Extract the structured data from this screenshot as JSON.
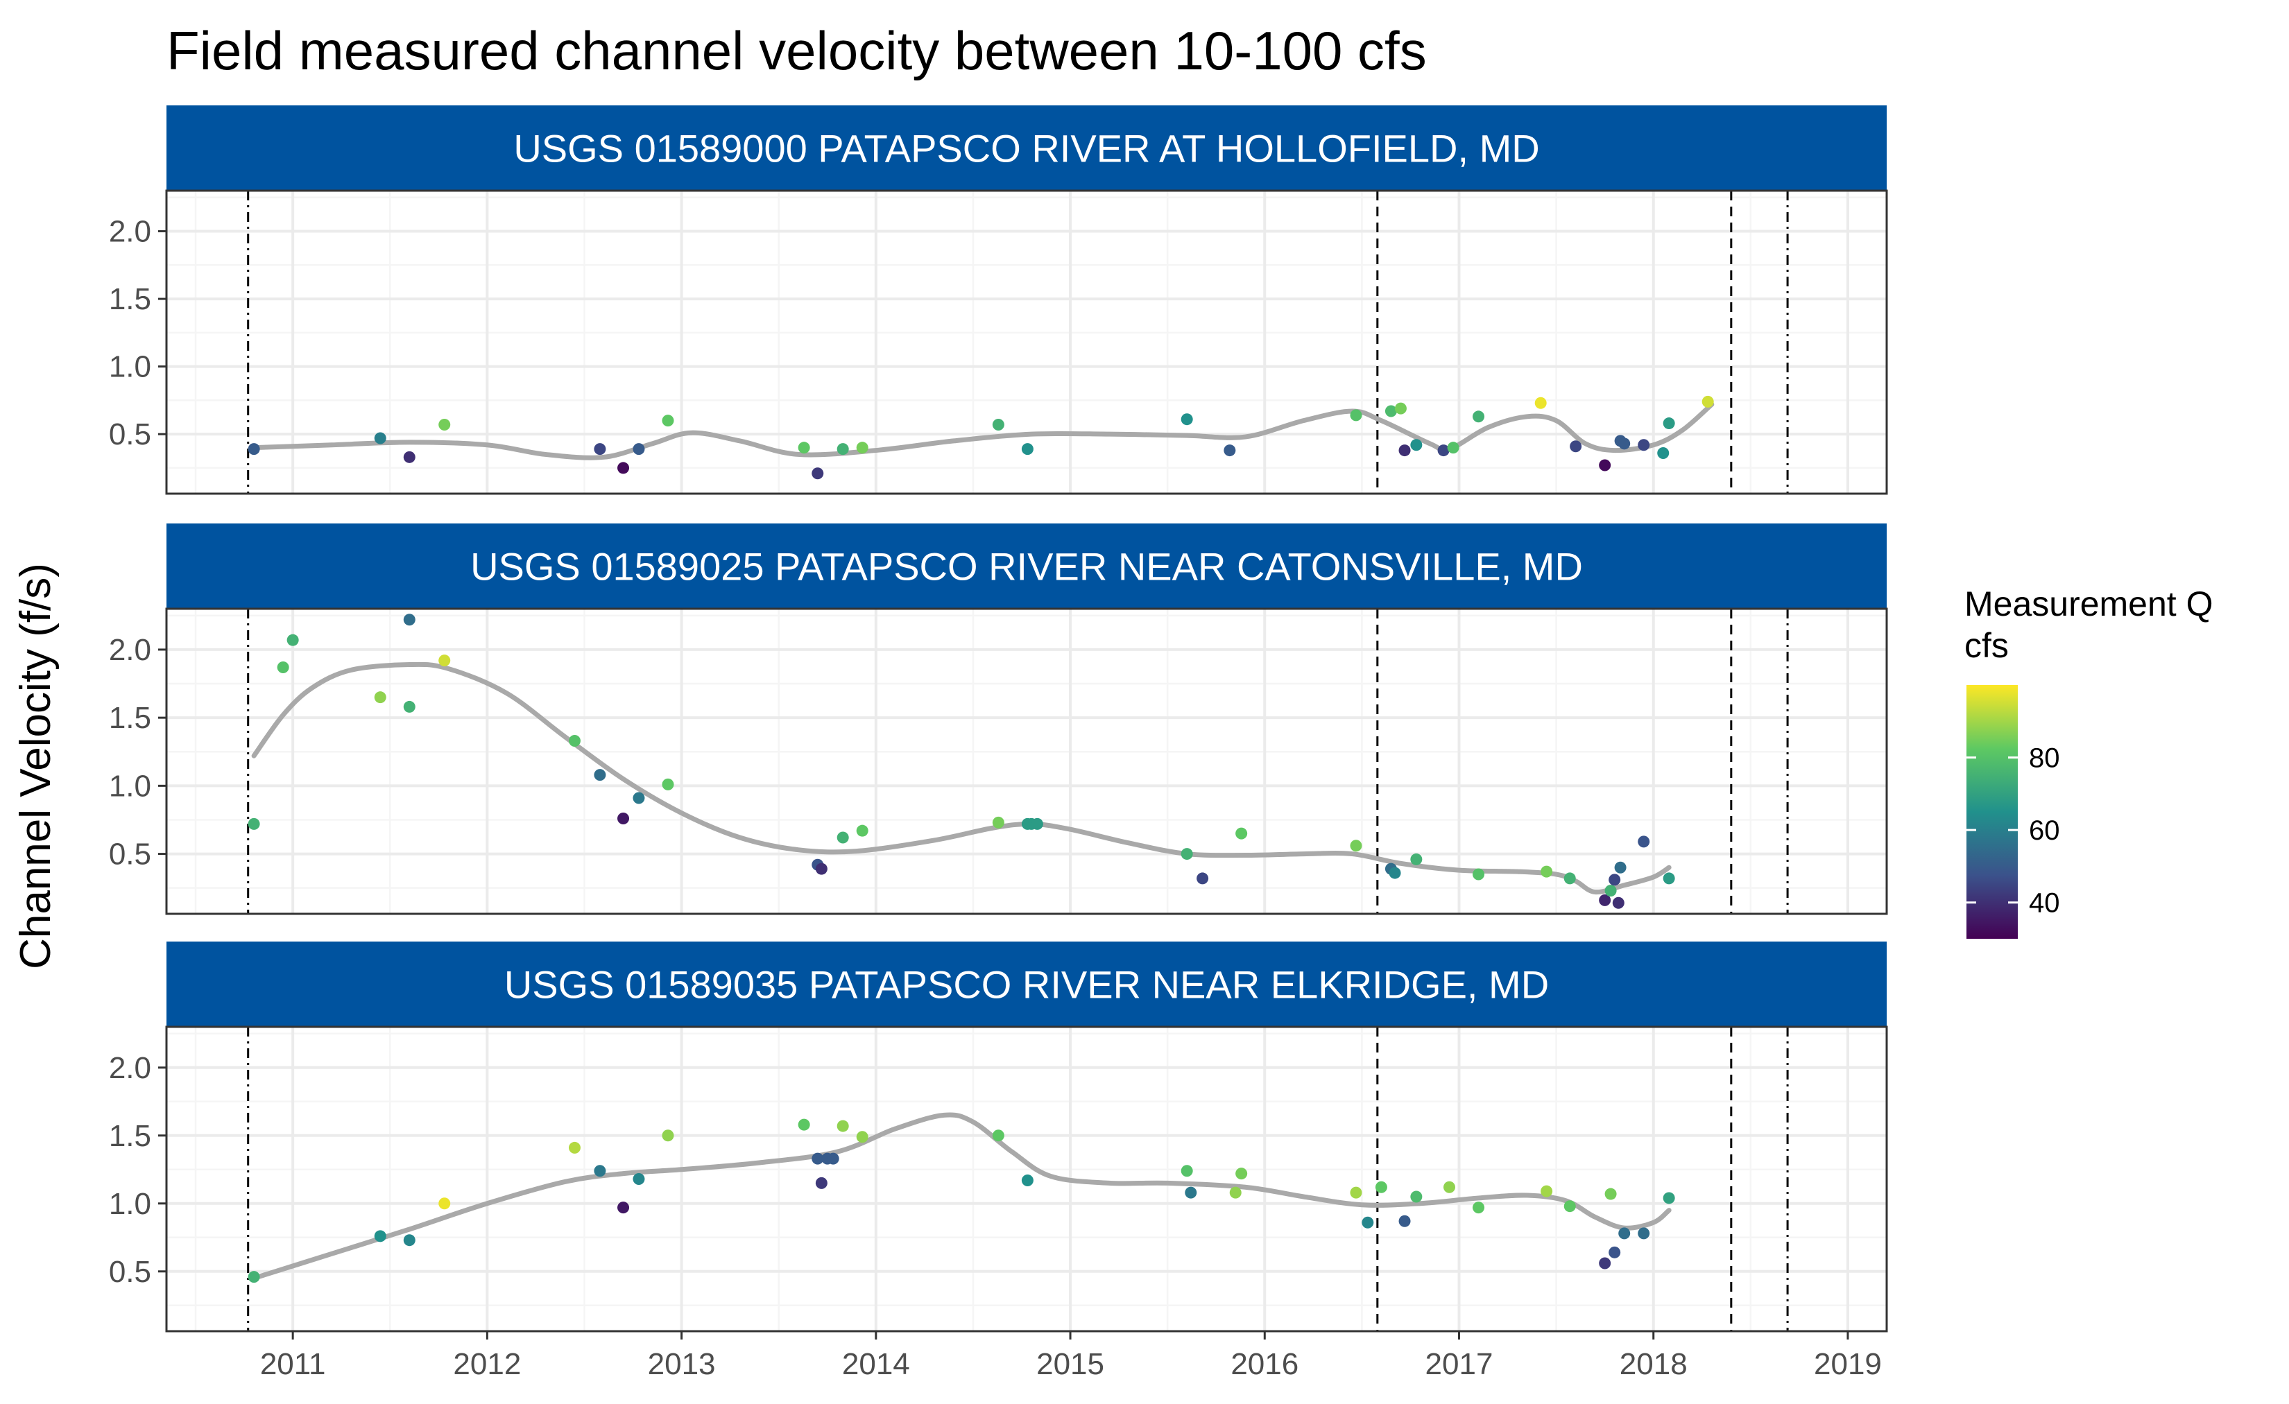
{
  "title": "Field measured channel velocity between 10-100 cfs",
  "ylabel": "Channel Velocity (f/s)",
  "colors": {
    "strip_bg": "#00539f",
    "strip_text": "#ffffff",
    "smooth": "#a9a9a9",
    "grid_major": "#ebebeb",
    "grid_minor": "#f5f5f5",
    "panel_border": "#333333"
  },
  "legend": {
    "title_line1": "Measurement Q",
    "title_line2": "cfs",
    "range": [
      30,
      100
    ],
    "breaks": [
      40,
      60,
      80
    ],
    "palette": [
      "#440154",
      "#3b528b",
      "#21918c",
      "#5ec962",
      "#fde725"
    ]
  },
  "chart_data": {
    "type": "scatter",
    "x_unit": "decimal year",
    "xlim": [
      2010.35,
      2019.2
    ],
    "ylim": [
      0.06,
      2.3
    ],
    "x_breaks": [
      2011,
      2012,
      2013,
      2014,
      2015,
      2016,
      2017,
      2018,
      2019
    ],
    "x_tick_labels": [
      "2011",
      "2012",
      "2013",
      "2014",
      "2015",
      "2016",
      "2017",
      "2018",
      "2019"
    ],
    "y_breaks": [
      0.5,
      1.0,
      1.5,
      2.0
    ],
    "y_tick_labels": [
      "0.5",
      "1.0",
      "1.5",
      "2.0"
    ],
    "vlines": [
      {
        "x": 2010.77,
        "style": "dotdash"
      },
      {
        "x": 2016.58,
        "style": "dashed"
      },
      {
        "x": 2018.4,
        "style": "dashed"
      },
      {
        "x": 2018.69,
        "style": "dotdash"
      }
    ],
    "panels": [
      {
        "name": "USGS 01589000 PATAPSCO RIVER AT HOLLOFIELD, MD",
        "points": [
          {
            "x": 2010.8,
            "y": 0.39,
            "q": 50
          },
          {
            "x": 2011.45,
            "y": 0.47,
            "q": 60
          },
          {
            "x": 2011.6,
            "y": 0.33,
            "q": 40
          },
          {
            "x": 2011.78,
            "y": 0.57,
            "q": 85
          },
          {
            "x": 2012.58,
            "y": 0.39,
            "q": 45
          },
          {
            "x": 2012.7,
            "y": 0.25,
            "q": 32
          },
          {
            "x": 2012.78,
            "y": 0.39,
            "q": 50
          },
          {
            "x": 2012.93,
            "y": 0.6,
            "q": 82
          },
          {
            "x": 2013.63,
            "y": 0.4,
            "q": 82
          },
          {
            "x": 2013.7,
            "y": 0.21,
            "q": 42
          },
          {
            "x": 2013.83,
            "y": 0.39,
            "q": 75
          },
          {
            "x": 2013.93,
            "y": 0.4,
            "q": 85
          },
          {
            "x": 2014.63,
            "y": 0.57,
            "q": 75
          },
          {
            "x": 2014.78,
            "y": 0.39,
            "q": 65
          },
          {
            "x": 2015.6,
            "y": 0.61,
            "q": 65
          },
          {
            "x": 2015.82,
            "y": 0.38,
            "q": 50
          },
          {
            "x": 2016.47,
            "y": 0.64,
            "q": 80
          },
          {
            "x": 2016.65,
            "y": 0.67,
            "q": 78
          },
          {
            "x": 2016.7,
            "y": 0.69,
            "q": 85
          },
          {
            "x": 2016.72,
            "y": 0.38,
            "q": 40
          },
          {
            "x": 2016.78,
            "y": 0.42,
            "q": 65
          },
          {
            "x": 2016.92,
            "y": 0.38,
            "q": 45
          },
          {
            "x": 2016.97,
            "y": 0.4,
            "q": 80
          },
          {
            "x": 2017.1,
            "y": 0.63,
            "q": 75
          },
          {
            "x": 2017.42,
            "y": 0.73,
            "q": 98
          },
          {
            "x": 2017.6,
            "y": 0.41,
            "q": 45
          },
          {
            "x": 2017.75,
            "y": 0.27,
            "q": 32
          },
          {
            "x": 2017.83,
            "y": 0.45,
            "q": 50
          },
          {
            "x": 2017.85,
            "y": 0.43,
            "q": 50
          },
          {
            "x": 2017.95,
            "y": 0.42,
            "q": 45
          },
          {
            "x": 2018.05,
            "y": 0.36,
            "q": 65
          },
          {
            "x": 2018.08,
            "y": 0.58,
            "q": 68
          },
          {
            "x": 2018.28,
            "y": 0.74,
            "q": 95
          }
        ],
        "smooth": [
          [
            2010.8,
            0.4
          ],
          [
            2011.2,
            0.42
          ],
          [
            2011.6,
            0.44
          ],
          [
            2012.0,
            0.42
          ],
          [
            2012.3,
            0.35
          ],
          [
            2012.6,
            0.33
          ],
          [
            2012.85,
            0.43
          ],
          [
            2013.05,
            0.51
          ],
          [
            2013.3,
            0.45
          ],
          [
            2013.6,
            0.35
          ],
          [
            2014.0,
            0.38
          ],
          [
            2014.4,
            0.45
          ],
          [
            2014.8,
            0.5
          ],
          [
            2015.2,
            0.5
          ],
          [
            2015.6,
            0.49
          ],
          [
            2015.9,
            0.48
          ],
          [
            2016.2,
            0.6
          ],
          [
            2016.45,
            0.67
          ],
          [
            2016.6,
            0.6
          ],
          [
            2016.85,
            0.43
          ],
          [
            2016.95,
            0.39
          ],
          [
            2017.15,
            0.55
          ],
          [
            2017.35,
            0.63
          ],
          [
            2017.5,
            0.6
          ],
          [
            2017.65,
            0.43
          ],
          [
            2017.8,
            0.38
          ],
          [
            2018.0,
            0.42
          ],
          [
            2018.15,
            0.53
          ],
          [
            2018.3,
            0.72
          ]
        ]
      },
      {
        "name": "USGS 01589025 PATAPSCO RIVER NEAR CATONSVILLE, MD",
        "points": [
          {
            "x": 2010.8,
            "y": 0.72,
            "q": 75
          },
          {
            "x": 2010.95,
            "y": 1.87,
            "q": 80
          },
          {
            "x": 2011.0,
            "y": 2.07,
            "q": 75
          },
          {
            "x": 2011.45,
            "y": 1.65,
            "q": 88
          },
          {
            "x": 2011.6,
            "y": 1.58,
            "q": 75
          },
          {
            "x": 2011.6,
            "y": 2.22,
            "q": 55
          },
          {
            "x": 2011.78,
            "y": 1.92,
            "q": 95
          },
          {
            "x": 2012.45,
            "y": 1.33,
            "q": 80
          },
          {
            "x": 2012.58,
            "y": 1.08,
            "q": 55
          },
          {
            "x": 2012.7,
            "y": 0.76,
            "q": 35
          },
          {
            "x": 2012.78,
            "y": 0.91,
            "q": 58
          },
          {
            "x": 2012.93,
            "y": 1.01,
            "q": 82
          },
          {
            "x": 2013.7,
            "y": 0.42,
            "q": 48
          },
          {
            "x": 2013.72,
            "y": 0.39,
            "q": 40
          },
          {
            "x": 2013.83,
            "y": 0.62,
            "q": 75
          },
          {
            "x": 2013.93,
            "y": 0.67,
            "q": 82
          },
          {
            "x": 2014.63,
            "y": 0.73,
            "q": 85
          },
          {
            "x": 2014.78,
            "y": 0.72,
            "q": 68
          },
          {
            "x": 2014.8,
            "y": 0.72,
            "q": 68
          },
          {
            "x": 2014.83,
            "y": 0.72,
            "q": 68
          },
          {
            "x": 2015.6,
            "y": 0.5,
            "q": 75
          },
          {
            "x": 2015.68,
            "y": 0.32,
            "q": 45
          },
          {
            "x": 2015.88,
            "y": 0.65,
            "q": 82
          },
          {
            "x": 2016.47,
            "y": 0.56,
            "q": 85
          },
          {
            "x": 2016.65,
            "y": 0.39,
            "q": 55
          },
          {
            "x": 2016.67,
            "y": 0.36,
            "q": 62
          },
          {
            "x": 2016.78,
            "y": 0.46,
            "q": 75
          },
          {
            "x": 2017.1,
            "y": 0.35,
            "q": 80
          },
          {
            "x": 2017.45,
            "y": 0.37,
            "q": 85
          },
          {
            "x": 2017.57,
            "y": 0.32,
            "q": 75
          },
          {
            "x": 2017.75,
            "y": 0.16,
            "q": 38
          },
          {
            "x": 2017.78,
            "y": 0.23,
            "q": 75
          },
          {
            "x": 2017.8,
            "y": 0.31,
            "q": 45
          },
          {
            "x": 2017.82,
            "y": 0.14,
            "q": 40
          },
          {
            "x": 2017.83,
            "y": 0.4,
            "q": 55
          },
          {
            "x": 2017.95,
            "y": 0.59,
            "q": 48
          },
          {
            "x": 2018.08,
            "y": 0.32,
            "q": 68
          }
        ],
        "smooth": [
          [
            2010.8,
            1.22
          ],
          [
            2010.95,
            1.52
          ],
          [
            2011.1,
            1.72
          ],
          [
            2011.3,
            1.85
          ],
          [
            2011.6,
            1.89
          ],
          [
            2011.8,
            1.86
          ],
          [
            2012.1,
            1.68
          ],
          [
            2012.4,
            1.36
          ],
          [
            2012.7,
            1.05
          ],
          [
            2013.0,
            0.8
          ],
          [
            2013.3,
            0.62
          ],
          [
            2013.6,
            0.53
          ],
          [
            2013.9,
            0.52
          ],
          [
            2014.3,
            0.6
          ],
          [
            2014.6,
            0.69
          ],
          [
            2014.8,
            0.72
          ],
          [
            2015.0,
            0.68
          ],
          [
            2015.3,
            0.58
          ],
          [
            2015.6,
            0.5
          ],
          [
            2015.9,
            0.49
          ],
          [
            2016.2,
            0.5
          ],
          [
            2016.45,
            0.5
          ],
          [
            2016.7,
            0.43
          ],
          [
            2017.0,
            0.38
          ],
          [
            2017.3,
            0.37
          ],
          [
            2017.5,
            0.35
          ],
          [
            2017.6,
            0.3
          ],
          [
            2017.7,
            0.22
          ],
          [
            2017.85,
            0.27
          ],
          [
            2018.0,
            0.33
          ],
          [
            2018.08,
            0.4
          ]
        ]
      },
      {
        "name": "USGS 01589035 PATAPSCO RIVER NEAR ELKRIDGE, MD",
        "points": [
          {
            "x": 2010.8,
            "y": 0.46,
            "q": 75
          },
          {
            "x": 2011.45,
            "y": 0.76,
            "q": 65
          },
          {
            "x": 2011.6,
            "y": 0.73,
            "q": 62
          },
          {
            "x": 2011.78,
            "y": 1.0,
            "q": 98
          },
          {
            "x": 2012.45,
            "y": 1.41,
            "q": 92
          },
          {
            "x": 2012.58,
            "y": 1.24,
            "q": 58
          },
          {
            "x": 2012.7,
            "y": 0.97,
            "q": 35
          },
          {
            "x": 2012.78,
            "y": 1.18,
            "q": 62
          },
          {
            "x": 2012.93,
            "y": 1.5,
            "q": 88
          },
          {
            "x": 2013.63,
            "y": 1.58,
            "q": 82
          },
          {
            "x": 2013.7,
            "y": 1.33,
            "q": 50
          },
          {
            "x": 2013.72,
            "y": 1.15,
            "q": 42
          },
          {
            "x": 2013.75,
            "y": 1.33,
            "q": 50
          },
          {
            "x": 2013.78,
            "y": 1.33,
            "q": 50
          },
          {
            "x": 2013.83,
            "y": 1.57,
            "q": 88
          },
          {
            "x": 2013.93,
            "y": 1.49,
            "q": 88
          },
          {
            "x": 2014.63,
            "y": 1.5,
            "q": 82
          },
          {
            "x": 2014.78,
            "y": 1.17,
            "q": 65
          },
          {
            "x": 2015.6,
            "y": 1.24,
            "q": 80
          },
          {
            "x": 2015.62,
            "y": 1.08,
            "q": 58
          },
          {
            "x": 2015.85,
            "y": 1.08,
            "q": 88
          },
          {
            "x": 2015.88,
            "y": 1.22,
            "q": 85
          },
          {
            "x": 2016.47,
            "y": 1.08,
            "q": 90
          },
          {
            "x": 2016.53,
            "y": 0.86,
            "q": 62
          },
          {
            "x": 2016.6,
            "y": 1.12,
            "q": 82
          },
          {
            "x": 2016.72,
            "y": 0.87,
            "q": 50
          },
          {
            "x": 2016.78,
            "y": 1.05,
            "q": 78
          },
          {
            "x": 2016.95,
            "y": 1.12,
            "q": 88
          },
          {
            "x": 2017.1,
            "y": 0.97,
            "q": 82
          },
          {
            "x": 2017.45,
            "y": 1.09,
            "q": 90
          },
          {
            "x": 2017.57,
            "y": 0.98,
            "q": 82
          },
          {
            "x": 2017.75,
            "y": 0.56,
            "q": 42
          },
          {
            "x": 2017.78,
            "y": 1.07,
            "q": 85
          },
          {
            "x": 2017.8,
            "y": 0.64,
            "q": 48
          },
          {
            "x": 2017.85,
            "y": 0.78,
            "q": 55
          },
          {
            "x": 2017.95,
            "y": 0.78,
            "q": 55
          },
          {
            "x": 2018.08,
            "y": 1.04,
            "q": 70
          }
        ],
        "smooth": [
          [
            2010.8,
            0.45
          ],
          [
            2011.2,
            0.63
          ],
          [
            2011.6,
            0.81
          ],
          [
            2012.0,
            1.0
          ],
          [
            2012.4,
            1.16
          ],
          [
            2012.7,
            1.22
          ],
          [
            2013.0,
            1.25
          ],
          [
            2013.4,
            1.3
          ],
          [
            2013.8,
            1.38
          ],
          [
            2014.1,
            1.55
          ],
          [
            2014.35,
            1.65
          ],
          [
            2014.5,
            1.6
          ],
          [
            2014.7,
            1.38
          ],
          [
            2014.9,
            1.2
          ],
          [
            2015.2,
            1.15
          ],
          [
            2015.5,
            1.15
          ],
          [
            2015.9,
            1.12
          ],
          [
            2016.2,
            1.05
          ],
          [
            2016.5,
            0.99
          ],
          [
            2016.8,
            1.0
          ],
          [
            2017.1,
            1.04
          ],
          [
            2017.35,
            1.06
          ],
          [
            2017.55,
            1.02
          ],
          [
            2017.7,
            0.9
          ],
          [
            2017.85,
            0.82
          ],
          [
            2018.0,
            0.86
          ],
          [
            2018.08,
            0.95
          ]
        ]
      }
    ]
  }
}
